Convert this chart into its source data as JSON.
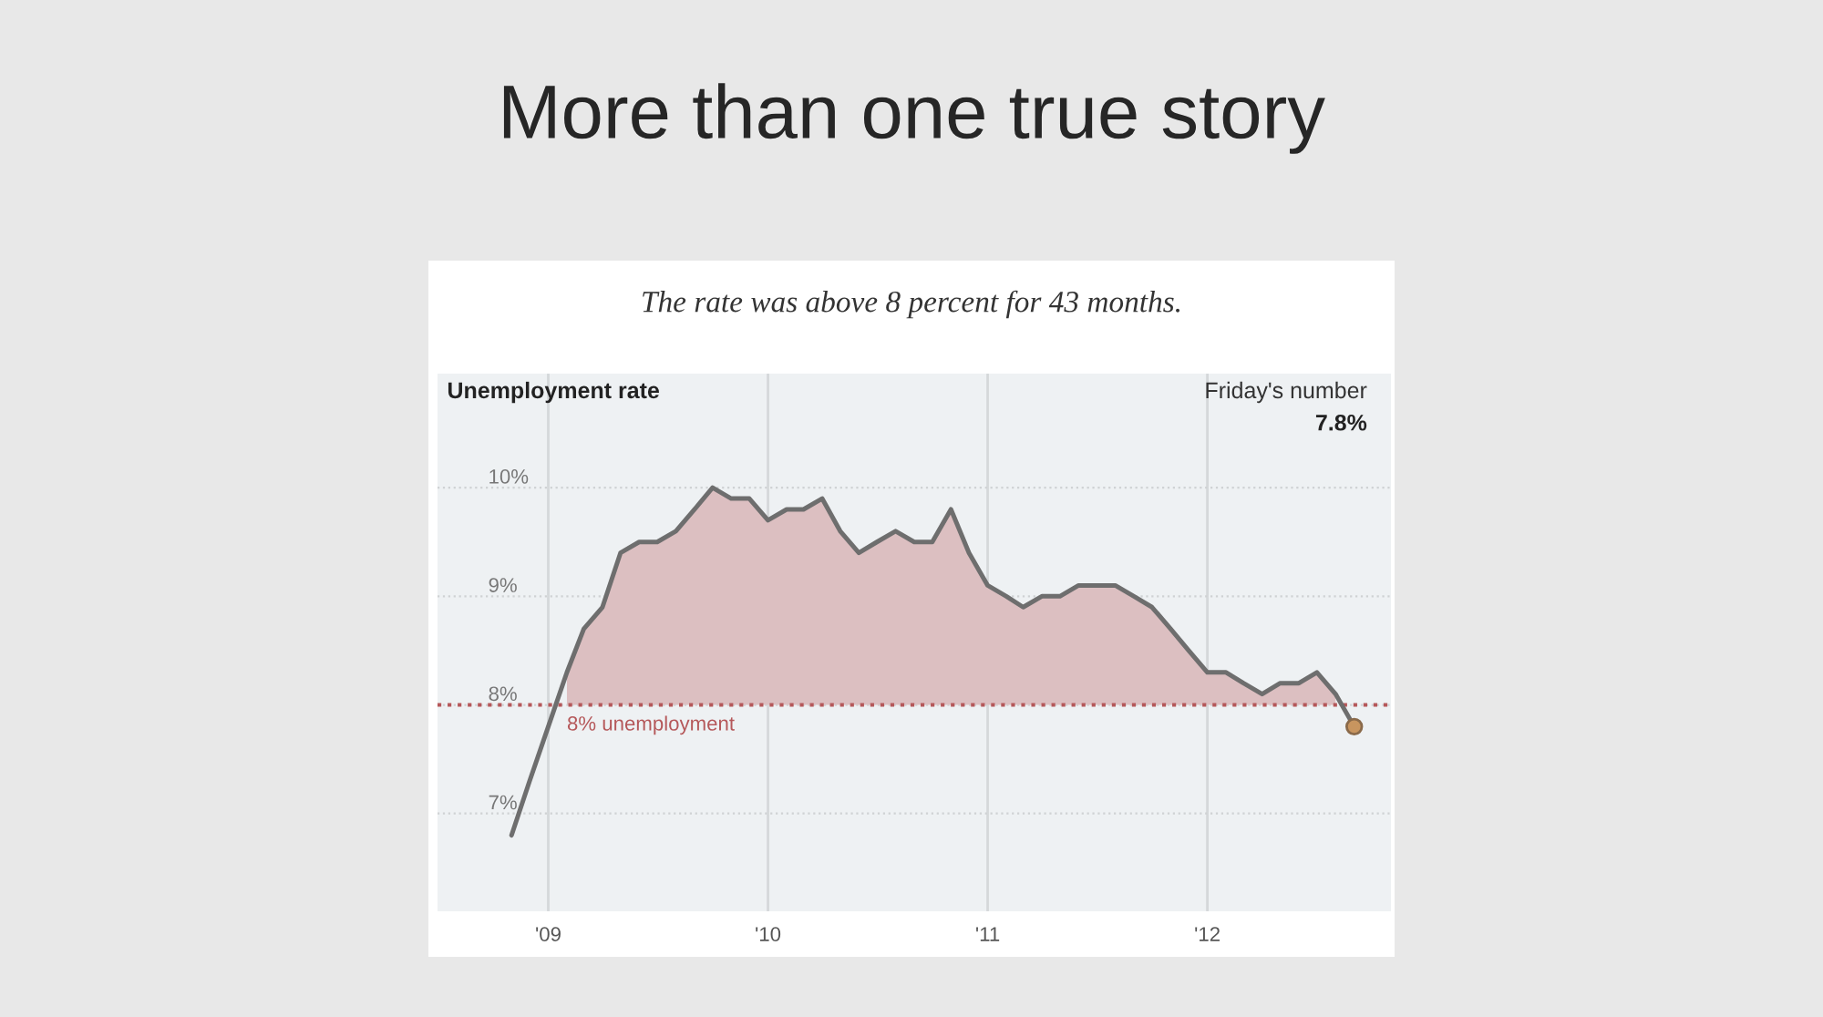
{
  "chart_data": {
    "type": "line",
    "title": "More than one true story",
    "subtitle": "The rate was above 8 percent for 43 months.",
    "ylabel": "Unemployment rate",
    "x": [
      "2008-11",
      "2008-12",
      "2009-01",
      "2009-02",
      "2009-03",
      "2009-04",
      "2009-05",
      "2009-06",
      "2009-07",
      "2009-08",
      "2009-09",
      "2009-10",
      "2009-11",
      "2009-12",
      "2010-01",
      "2010-02",
      "2010-03",
      "2010-04",
      "2010-05",
      "2010-06",
      "2010-07",
      "2010-08",
      "2010-09",
      "2010-10",
      "2010-11",
      "2010-12",
      "2011-01",
      "2011-02",
      "2011-03",
      "2011-04",
      "2011-05",
      "2011-06",
      "2011-07",
      "2011-08",
      "2011-09",
      "2011-10",
      "2011-11",
      "2011-12",
      "2012-01",
      "2012-02",
      "2012-03",
      "2012-04",
      "2012-05",
      "2012-06",
      "2012-07",
      "2012-08",
      "2012-09"
    ],
    "series": [
      {
        "type": "area",
        "color": "#dcbfc1",
        "values": [
          null,
          null,
          null,
          8.3,
          8.7,
          8.9,
          9.4,
          9.5,
          9.5,
          9.6,
          9.8,
          10.0,
          9.9,
          9.9,
          9.7,
          9.8,
          9.8,
          9.9,
          9.6,
          9.4,
          9.5,
          9.6,
          9.5,
          9.5,
          9.8,
          9.4,
          9.1,
          9.0,
          8.9,
          9.0,
          9.0,
          9.1,
          9.1,
          9.1,
          9.0,
          8.9,
          8.7,
          8.5,
          8.3,
          8.3,
          8.2,
          8.1,
          8.2,
          8.2,
          8.3,
          8.1,
          null
        ]
      },
      {
        "color": "#6e6e6e",
        "values": [
          6.8,
          7.3,
          7.8,
          8.3,
          8.7,
          8.9,
          9.4,
          9.5,
          9.5,
          9.6,
          9.8,
          10.0,
          9.9,
          9.9,
          9.7,
          9.8,
          9.8,
          9.9,
          9.6,
          9.4,
          9.5,
          9.6,
          9.5,
          9.5,
          9.8,
          9.4,
          9.1,
          9.0,
          8.9,
          9.0,
          9.0,
          9.1,
          9.1,
          9.1,
          9.0,
          8.9,
          8.7,
          8.5,
          8.3,
          8.3,
          8.2,
          8.1,
          8.2,
          8.2,
          8.3,
          8.1,
          7.8
        ]
      }
    ],
    "xlim": [
      "2008-07",
      "2012-11"
    ],
    "xticks": [
      {
        "value": "2009-01",
        "label": "'09"
      },
      {
        "value": "2010-01",
        "label": "'10"
      },
      {
        "value": "2011-01",
        "label": "'11"
      },
      {
        "value": "2012-01",
        "label": "'12"
      }
    ],
    "ylim": [
      6.1,
      11.05
    ],
    "yticks": [
      {
        "value": 7,
        "label": "7%"
      },
      {
        "value": 8,
        "label": "8%"
      },
      {
        "value": 9,
        "label": "9%"
      },
      {
        "value": 10,
        "label": "10%"
      }
    ],
    "ref_lines": [
      {
        "axis": "y",
        "value": 8,
        "label": "8% unemployment",
        "color": "#b5585a",
        "line_style": "dotted"
      }
    ],
    "annotations": [
      "Friday's number",
      "7.8%"
    ],
    "grid": true
  }
}
